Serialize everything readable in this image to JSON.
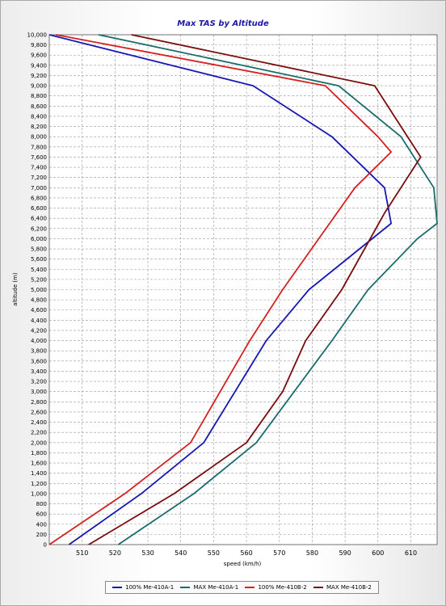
{
  "chart_data": {
    "type": "line",
    "title": "Max TAS by Altitude",
    "xlabel": "speed (km/h)",
    "ylabel": "altitude (m)",
    "xlim": [
      500,
      618
    ],
    "ylim": [
      0,
      10000
    ],
    "x_ticks": [
      "510",
      "520",
      "530",
      "540",
      "550",
      "560",
      "570",
      "580",
      "590",
      "600",
      "610"
    ],
    "y_ticks": [
      "0",
      "200",
      "400",
      "600",
      "800",
      "1,000",
      "1,200",
      "1,400",
      "1,600",
      "1,800",
      "2,000",
      "2,200",
      "2,400",
      "2,600",
      "2,800",
      "3,000",
      "3,200",
      "3,400",
      "3,600",
      "3,800",
      "4,000",
      "4,200",
      "4,400",
      "4,600",
      "4,800",
      "5,000",
      "5,200",
      "5,400",
      "5,600",
      "5,800",
      "6,000",
      "6,200",
      "6,400",
      "6,600",
      "6,800",
      "7,000",
      "7,200",
      "7,400",
      "7,600",
      "7,800",
      "8,000",
      "8,200",
      "8,400",
      "8,600",
      "8,800",
      "9,000",
      "9,200",
      "9,400",
      "9,600",
      "9,800",
      "10,000"
    ],
    "grid": true,
    "legend_position": "bottom",
    "series": [
      {
        "name": "100% Me-410A-1",
        "color": "#1818b4",
        "points": [
          [
            506,
            0
          ],
          [
            528,
            1000
          ],
          [
            547,
            2000
          ],
          [
            566,
            4000
          ],
          [
            579,
            5000
          ],
          [
            604,
            6300
          ],
          [
            602,
            7000
          ],
          [
            586,
            8000
          ],
          [
            562,
            9000
          ],
          [
            500,
            10000
          ]
        ]
      },
      {
        "name": "MAX Me-410A-1",
        "color": "#1a6b6b",
        "points": [
          [
            521,
            0
          ],
          [
            544,
            1000
          ],
          [
            563,
            2000
          ],
          [
            586,
            4000
          ],
          [
            597,
            5000
          ],
          [
            612,
            6000
          ],
          [
            618,
            6300
          ],
          [
            617,
            7000
          ],
          [
            607,
            8000
          ],
          [
            588,
            9000
          ],
          [
            515,
            10000
          ]
        ]
      },
      {
        "name": "100% Me-410B-2",
        "color": "#d42020",
        "points": [
          [
            500,
            0
          ],
          [
            523,
            1000
          ],
          [
            543,
            2000
          ],
          [
            561,
            4000
          ],
          [
            571,
            5000
          ],
          [
            593,
            7000
          ],
          [
            604,
            7700
          ],
          [
            600,
            8000
          ],
          [
            584,
            9000
          ],
          [
            502,
            10000
          ]
        ]
      },
      {
        "name": "MAX Me-410B-2",
        "color": "#7a0c0c",
        "points": [
          [
            512,
            0
          ],
          [
            538,
            1000
          ],
          [
            560,
            2000
          ],
          [
            571,
            3000
          ],
          [
            578,
            4000
          ],
          [
            589,
            5000
          ],
          [
            602,
            6500
          ],
          [
            613,
            7600
          ],
          [
            609,
            8000
          ],
          [
            599,
            9000
          ],
          [
            525,
            10000
          ]
        ]
      }
    ]
  }
}
